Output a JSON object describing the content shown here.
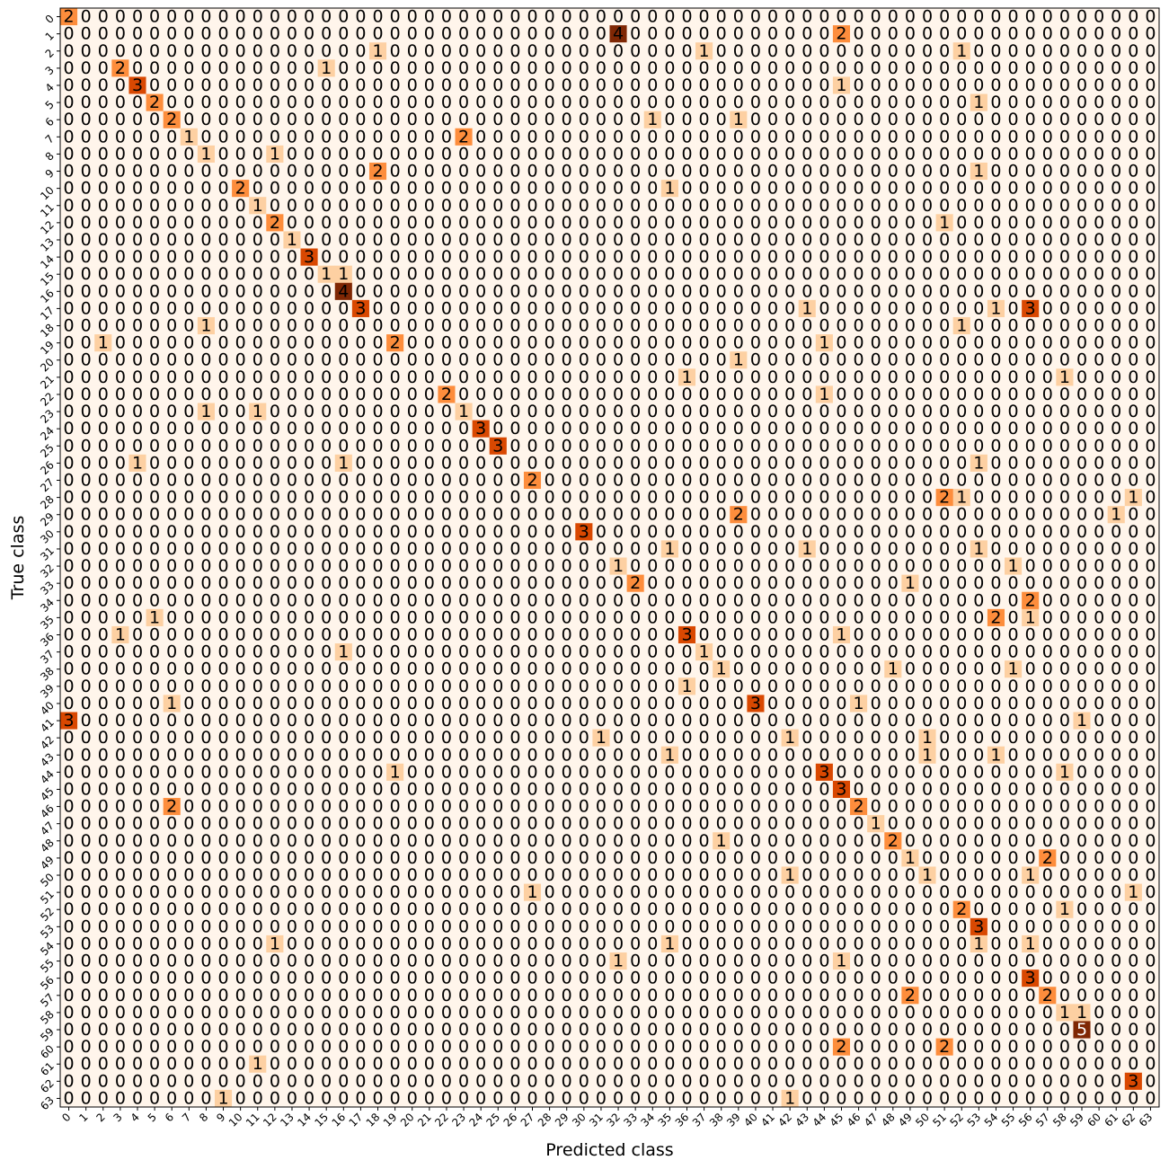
{
  "chart_data": {
    "type": "heatmap",
    "title": "",
    "xlabel": "Predicted class",
    "ylabel": "True class",
    "classes": [
      "0",
      "1",
      "2",
      "3",
      "4",
      "5",
      "6",
      "7",
      "8",
      "9",
      "10",
      "11",
      "12",
      "13",
      "14",
      "15",
      "16",
      "17",
      "18",
      "19",
      "20",
      "21",
      "22",
      "23",
      "24",
      "25",
      "26",
      "27",
      "28",
      "29",
      "30",
      "31",
      "32",
      "33",
      "34",
      "35",
      "36",
      "37",
      "38",
      "39",
      "40",
      "41",
      "42",
      "43",
      "44",
      "45",
      "46",
      "47",
      "48",
      "49",
      "50",
      "51",
      "52",
      "53",
      "54",
      "55",
      "56",
      "57",
      "58",
      "59",
      "60",
      "61",
      "62",
      "63"
    ],
    "colormap": [
      "#fff5eb",
      "#fdd0a2",
      "#fd8d3c",
      "#d94801",
      "#7f2704"
    ],
    "vmin": 0,
    "vmax": 5,
    "grid": false,
    "nonzero_cells": [
      [
        0,
        0,
        2
      ],
      [
        1,
        32,
        4
      ],
      [
        1,
        45,
        2
      ],
      [
        2,
        18,
        1
      ],
      [
        2,
        37,
        1
      ],
      [
        2,
        52,
        1
      ],
      [
        3,
        3,
        2
      ],
      [
        3,
        15,
        1
      ],
      [
        4,
        4,
        3
      ],
      [
        4,
        45,
        1
      ],
      [
        5,
        5,
        2
      ],
      [
        5,
        53,
        1
      ],
      [
        6,
        6,
        2
      ],
      [
        6,
        34,
        1
      ],
      [
        6,
        39,
        1
      ],
      [
        7,
        7,
        1
      ],
      [
        7,
        23,
        2
      ],
      [
        8,
        8,
        1
      ],
      [
        8,
        12,
        1
      ],
      [
        9,
        18,
        2
      ],
      [
        9,
        53,
        1
      ],
      [
        10,
        10,
        2
      ],
      [
        10,
        35,
        1
      ],
      [
        11,
        11,
        1
      ],
      [
        12,
        12,
        2
      ],
      [
        12,
        51,
        1
      ],
      [
        13,
        13,
        1
      ],
      [
        14,
        14,
        3
      ],
      [
        15,
        15,
        1
      ],
      [
        15,
        16,
        1
      ],
      [
        16,
        16,
        4
      ],
      [
        17,
        17,
        3
      ],
      [
        17,
        43,
        1
      ],
      [
        17,
        54,
        1
      ],
      [
        17,
        56,
        3
      ],
      [
        18,
        8,
        1
      ],
      [
        18,
        52,
        1
      ],
      [
        19,
        2,
        1
      ],
      [
        19,
        19,
        2
      ],
      [
        19,
        44,
        1
      ],
      [
        20,
        39,
        1
      ],
      [
        21,
        36,
        1
      ],
      [
        21,
        58,
        1
      ],
      [
        22,
        22,
        2
      ],
      [
        22,
        44,
        1
      ],
      [
        23,
        8,
        1
      ],
      [
        23,
        11,
        1
      ],
      [
        23,
        23,
        1
      ],
      [
        24,
        24,
        3
      ],
      [
        25,
        25,
        3
      ],
      [
        26,
        4,
        1
      ],
      [
        26,
        16,
        1
      ],
      [
        26,
        53,
        1
      ],
      [
        27,
        27,
        2
      ],
      [
        28,
        51,
        2
      ],
      [
        28,
        52,
        1
      ],
      [
        28,
        62,
        1
      ],
      [
        29,
        39,
        2
      ],
      [
        29,
        61,
        1
      ],
      [
        30,
        30,
        3
      ],
      [
        31,
        35,
        1
      ],
      [
        31,
        43,
        1
      ],
      [
        31,
        53,
        1
      ],
      [
        32,
        32,
        1
      ],
      [
        32,
        55,
        1
      ],
      [
        33,
        33,
        2
      ],
      [
        33,
        49,
        1
      ],
      [
        34,
        56,
        2
      ],
      [
        35,
        5,
        1
      ],
      [
        35,
        54,
        2
      ],
      [
        35,
        56,
        1
      ],
      [
        36,
        3,
        1
      ],
      [
        36,
        36,
        3
      ],
      [
        36,
        45,
        1
      ],
      [
        37,
        16,
        1
      ],
      [
        37,
        37,
        1
      ],
      [
        38,
        38,
        1
      ],
      [
        38,
        48,
        1
      ],
      [
        38,
        55,
        1
      ],
      [
        39,
        36,
        1
      ],
      [
        40,
        6,
        1
      ],
      [
        40,
        40,
        3
      ],
      [
        40,
        46,
        1
      ],
      [
        41,
        0,
        3
      ],
      [
        41,
        59,
        1
      ],
      [
        42,
        31,
        1
      ],
      [
        42,
        42,
        1
      ],
      [
        42,
        50,
        1
      ],
      [
        43,
        35,
        1
      ],
      [
        43,
        50,
        1
      ],
      [
        43,
        54,
        1
      ],
      [
        44,
        19,
        1
      ],
      [
        44,
        44,
        3
      ],
      [
        44,
        58,
        1
      ],
      [
        45,
        45,
        3
      ],
      [
        46,
        6,
        2
      ],
      [
        46,
        46,
        2
      ],
      [
        47,
        47,
        1
      ],
      [
        48,
        38,
        1
      ],
      [
        48,
        48,
        2
      ],
      [
        49,
        49,
        1
      ],
      [
        49,
        57,
        2
      ],
      [
        50,
        42,
        1
      ],
      [
        50,
        50,
        1
      ],
      [
        50,
        56,
        1
      ],
      [
        51,
        27,
        1
      ],
      [
        51,
        62,
        1
      ],
      [
        52,
        52,
        2
      ],
      [
        52,
        58,
        1
      ],
      [
        53,
        53,
        3
      ],
      [
        54,
        12,
        1
      ],
      [
        54,
        35,
        1
      ],
      [
        54,
        53,
        1
      ],
      [
        54,
        56,
        1
      ],
      [
        55,
        32,
        1
      ],
      [
        55,
        45,
        1
      ],
      [
        56,
        56,
        3
      ],
      [
        57,
        49,
        2
      ],
      [
        57,
        57,
        2
      ],
      [
        58,
        58,
        1
      ],
      [
        58,
        59,
        1
      ],
      [
        59,
        59,
        5
      ],
      [
        60,
        45,
        2
      ],
      [
        60,
        51,
        2
      ],
      [
        61,
        11,
        1
      ],
      [
        62,
        62,
        3
      ],
      [
        63,
        9,
        1
      ],
      [
        63,
        42,
        1
      ]
    ]
  }
}
